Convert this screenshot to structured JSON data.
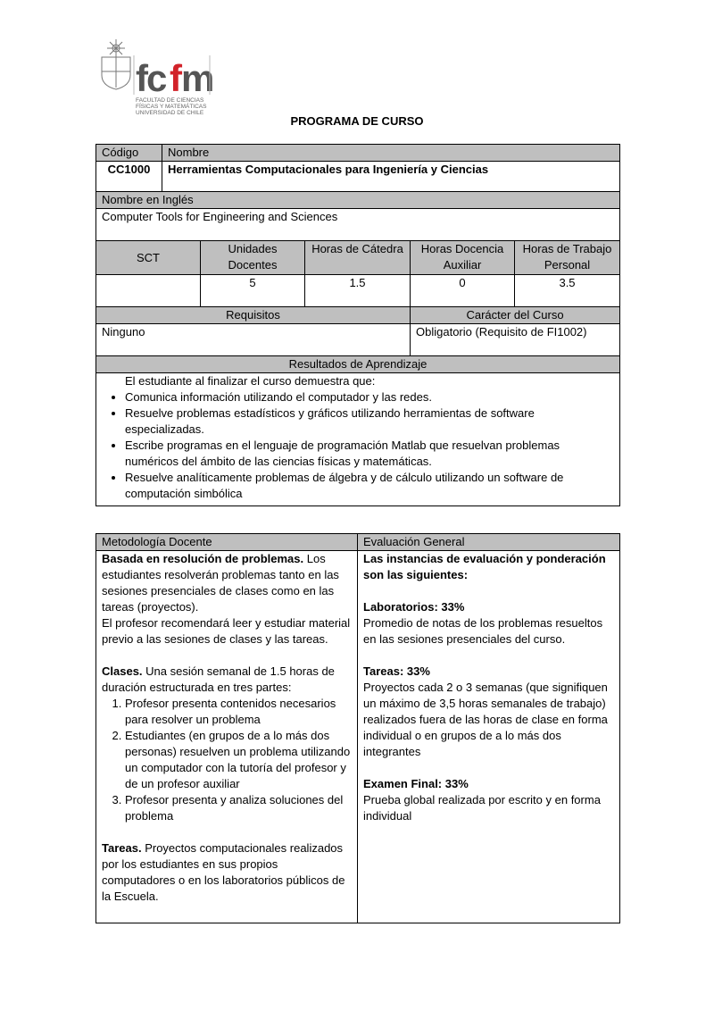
{
  "logo": {
    "brand": "fcfm",
    "lines": [
      "FACULTAD DE CIENCIAS",
      "FÍSICAS Y MATEMÁTICAS",
      "UNIVERSIDAD DE CHILE"
    ]
  },
  "doc_title": "PROGRAMA DE CURSO",
  "course": {
    "codigo_label": "Código",
    "nombre_label": "Nombre",
    "codigo": "CC1000",
    "nombre": "Herramientas Computacionales para Ingeniería y Ciencias",
    "ingles_label": "Nombre en Inglés",
    "ingles": "Computer Tools for Engineering and Sciences",
    "hours_headers": [
      "SCT",
      "Unidades Docentes",
      "Horas de Cátedra",
      "Horas Docencia Auxiliar",
      "Horas de Trabajo Personal"
    ],
    "hours_values": [
      "",
      "5",
      "1.5",
      "0",
      "3.5"
    ],
    "requisitos_label": "Requisitos",
    "caracter_label": "Carácter del Curso",
    "requisitos": "Ninguno",
    "caracter": "Obligatorio (Requisito de FI1002)",
    "resultados_label": "Resultados de Aprendizaje",
    "resultados_intro": "El estudiante al finalizar el curso demuestra que:",
    "resultados": [
      "Comunica información utilizando el computador y las redes.",
      "Resuelve problemas estadísticos y gráficos utilizando herramientas de software especializadas.",
      "Escribe programas en el lenguaje de programación Matlab que resuelvan problemas numéricos del ámbito de las ciencias físicas y matemáticas.",
      "Resuelve analíticamente problemas de álgebra y de cálculo utilizando un software de computación simbólica"
    ]
  },
  "metodologia": {
    "label": "Metodología Docente",
    "p1_bold": "Basada en resolución de problemas.",
    "p1_rest": " Los estudiantes resolverán problemas tanto en las sesiones presenciales de clases como en las tareas (proyectos).",
    "p2": "El profesor recomendará leer y estudiar material previo a las sesiones de clases y las tareas.",
    "clases_bold": "Clases.",
    "clases_rest": " Una sesión semanal de 1.5 horas de duración estructurada  en tres partes:",
    "clases_steps": [
      "Profesor presenta contenidos necesarios para resolver un problema",
      "Estudiantes (en grupos de a lo más dos personas) resuelven un problema utilizando un computador con la tutoría del profesor y de un profesor auxiliar",
      "Profesor presenta y analiza soluciones del problema"
    ],
    "tareas_bold": "Tareas.",
    "tareas_rest": " Proyectos computacionales realizados por los estudiantes en sus propios computadores o en los laboratorios públicos de la Escuela."
  },
  "evaluacion": {
    "label": "Evaluación General",
    "intro": "Las instancias de evaluación y ponderación son las siguientes:",
    "items": [
      {
        "title": "Laboratorios: 33%",
        "text": "Promedio de notas de los problemas resueltos en las sesiones presenciales del curso."
      },
      {
        "title": "Tareas: 33%",
        "text": "Proyectos cada 2 o 3 semanas (que signifiquen un máximo de 3,5 horas semanales de trabajo) realizados fuera de las horas de clase en forma individual o en grupos de a lo más dos integrantes"
      },
      {
        "title": "Examen Final: 33%",
        "text": "Prueba global realizada por escrito y en forma individual"
      }
    ]
  }
}
